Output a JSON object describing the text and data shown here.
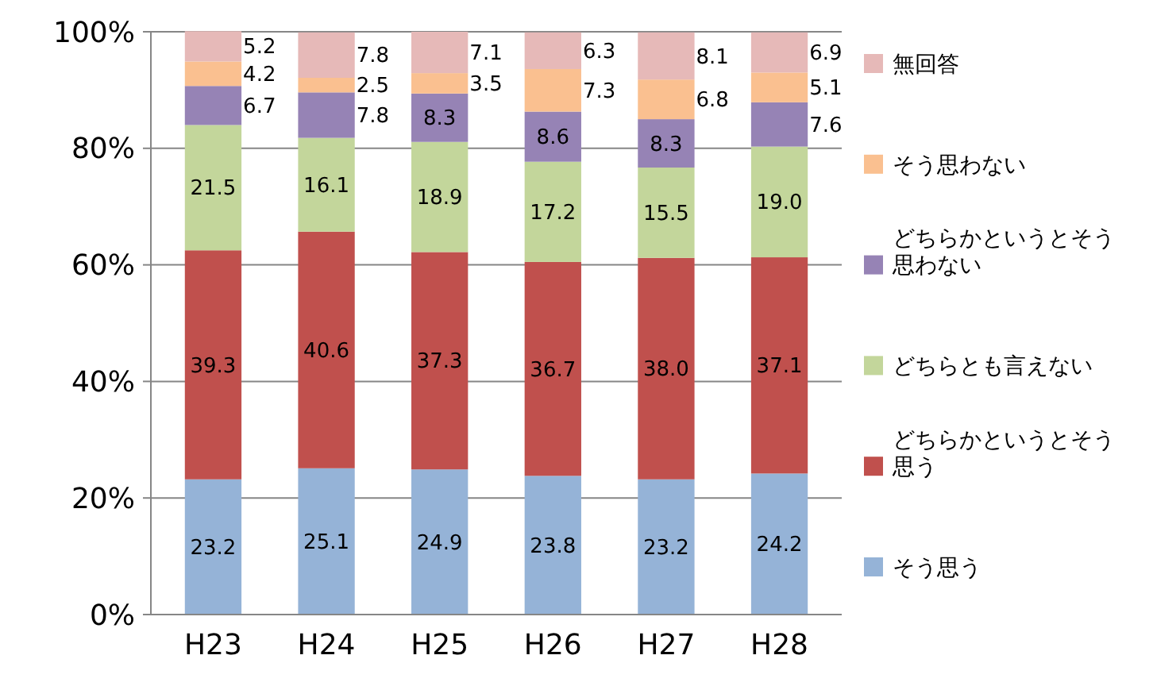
{
  "chart_data": {
    "type": "bar",
    "stacked": true,
    "categories": [
      "H23",
      "H24",
      "H25",
      "H26",
      "H27",
      "H28"
    ],
    "ylim": [
      0,
      100
    ],
    "yticks": [
      {
        "value": 0,
        "label": "0%"
      },
      {
        "value": 20,
        "label": "20%"
      },
      {
        "value": 40,
        "label": "40%"
      },
      {
        "value": 60,
        "label": "60%"
      },
      {
        "value": 80,
        "label": "80%"
      },
      {
        "value": 100,
        "label": "100%"
      }
    ],
    "grid": "y",
    "legend": "right",
    "series": [
      {
        "name": "そう思う",
        "color": "#95b3d7",
        "values": [
          23.2,
          25.1,
          24.9,
          23.8,
          23.2,
          24.2
        ],
        "value_labels": [
          "23.2",
          "25.1",
          "24.9",
          "23.8",
          "23.2",
          "24.2"
        ]
      },
      {
        "name": "どちらかというとそう思う",
        "color": "#c0504d",
        "values": [
          39.3,
          40.6,
          37.3,
          36.7,
          38.0,
          37.1
        ],
        "value_labels": [
          "39.3",
          "40.6",
          "37.3",
          "36.7",
          "38.0",
          "37.1"
        ]
      },
      {
        "name": "どちらとも言えない",
        "color": "#c3d69b",
        "values": [
          21.5,
          16.1,
          18.9,
          17.2,
          15.5,
          19.0
        ],
        "value_labels": [
          "21.5",
          "16.1",
          "18.9",
          "17.2",
          "15.5",
          "19.0"
        ]
      },
      {
        "name": "どちらかというとそう思わない",
        "color": "#9683b5",
        "values": [
          6.7,
          7.8,
          8.3,
          8.6,
          8.3,
          7.6
        ],
        "value_labels": [
          "6.7",
          "7.8",
          "8.3",
          "8.6",
          "8.3",
          "7.6"
        ]
      },
      {
        "name": "そう思わない",
        "color": "#fac090",
        "values": [
          4.2,
          2.5,
          3.5,
          7.3,
          6.8,
          5.1
        ],
        "value_labels": [
          "4.2",
          "2.5",
          "3.5",
          "7.3",
          "6.8",
          "5.1"
        ]
      },
      {
        "name": "無回答",
        "color": "#e6b9b8",
        "values": [
          5.2,
          7.8,
          7.1,
          6.3,
          8.1,
          6.9
        ],
        "value_labels": [
          "5.2",
          "7.8",
          "7.1",
          "6.3",
          "8.1",
          "6.9"
        ]
      }
    ]
  }
}
